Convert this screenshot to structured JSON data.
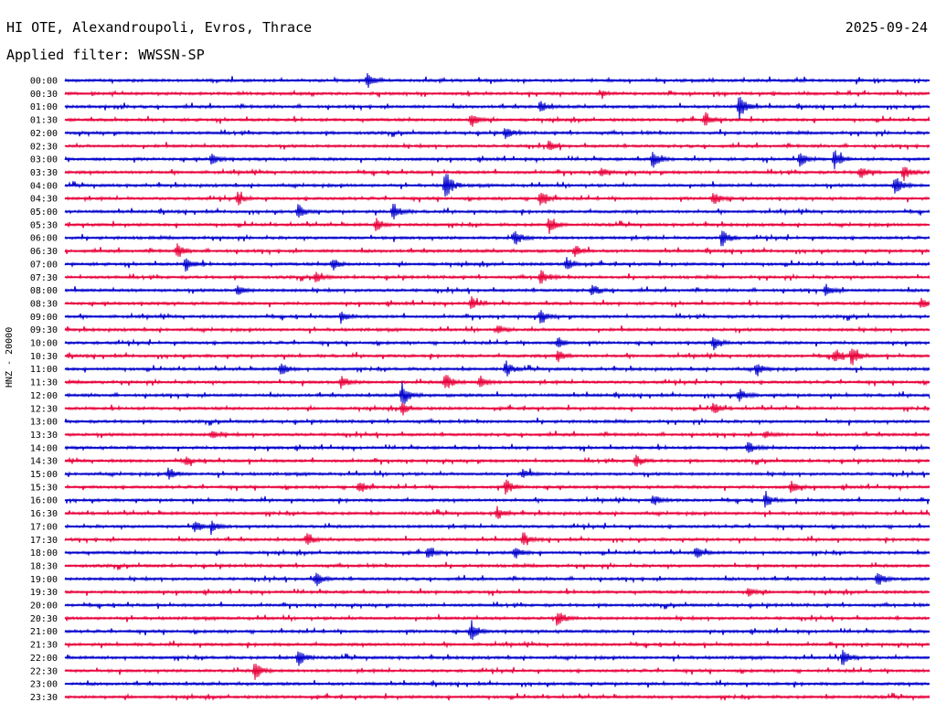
{
  "header": {
    "station": "HI OTE, Alexandroupoli, Evros, Thrace",
    "date": "2025-09-24",
    "filter": "Applied filter: WWSSN-SP"
  },
  "chart_data": {
    "type": "line",
    "title": "HI OTE, Alexandroupoli, Evros, Thrace",
    "ylabel": "HNZ - 20000",
    "row_labels": [
      "00:00",
      "00:30",
      "01:00",
      "01:30",
      "02:00",
      "02:30",
      "03:00",
      "03:30",
      "04:00",
      "04:30",
      "05:00",
      "05:30",
      "06:00",
      "06:30",
      "07:00",
      "07:30",
      "08:00",
      "08:30",
      "09:00",
      "09:30",
      "10:00",
      "10:30",
      "11:00",
      "11:30",
      "12:00",
      "12:30",
      "13:00",
      "13:30",
      "14:00",
      "14:30",
      "15:00",
      "15:30",
      "16:00",
      "16:30",
      "17:00",
      "17:30",
      "18:00",
      "18:30",
      "19:00",
      "19:30",
      "20:00",
      "20:30",
      "21:00",
      "21:30",
      "22:00",
      "22:30",
      "23:00",
      "23:30"
    ],
    "colors": [
      "#0000cc",
      "#e8003a"
    ],
    "events": [
      {
        "row": 0,
        "t": 0.35,
        "a": 1.0
      },
      {
        "row": 1,
        "t": 0.62,
        "a": 0.3
      },
      {
        "row": 2,
        "t": 0.55,
        "a": 0.8
      },
      {
        "row": 2,
        "t": 0.78,
        "a": 1.6
      },
      {
        "row": 3,
        "t": 0.47,
        "a": 1.0
      },
      {
        "row": 3,
        "t": 0.74,
        "a": 0.9
      },
      {
        "row": 4,
        "t": 0.51,
        "a": 0.8
      },
      {
        "row": 5,
        "t": 0.56,
        "a": 0.6
      },
      {
        "row": 6,
        "t": 0.17,
        "a": 0.8
      },
      {
        "row": 6,
        "t": 0.68,
        "a": 1.2
      },
      {
        "row": 6,
        "t": 0.85,
        "a": 1.0
      },
      {
        "row": 6,
        "t": 0.89,
        "a": 1.2
      },
      {
        "row": 7,
        "t": 0.62,
        "a": 0.6
      },
      {
        "row": 7,
        "t": 0.92,
        "a": 0.9
      },
      {
        "row": 7,
        "t": 0.97,
        "a": 1.0
      },
      {
        "row": 8,
        "t": 0.44,
        "a": 2.0
      },
      {
        "row": 8,
        "t": 0.96,
        "a": 1.4
      },
      {
        "row": 9,
        "t": 0.2,
        "a": 0.8
      },
      {
        "row": 9,
        "t": 0.55,
        "a": 1.3
      },
      {
        "row": 9,
        "t": 0.75,
        "a": 0.9
      },
      {
        "row": 10,
        "t": 0.38,
        "a": 1.1
      },
      {
        "row": 10,
        "t": 0.27,
        "a": 0.9
      },
      {
        "row": 11,
        "t": 0.36,
        "a": 0.8
      },
      {
        "row": 11,
        "t": 0.56,
        "a": 1.1
      },
      {
        "row": 12,
        "t": 0.52,
        "a": 1.0
      },
      {
        "row": 12,
        "t": 0.76,
        "a": 1.3
      },
      {
        "row": 13,
        "t": 0.13,
        "a": 0.9
      },
      {
        "row": 13,
        "t": 0.59,
        "a": 0.8
      },
      {
        "row": 14,
        "t": 0.14,
        "a": 0.9
      },
      {
        "row": 14,
        "t": 0.31,
        "a": 0.8
      },
      {
        "row": 14,
        "t": 0.58,
        "a": 1.0
      },
      {
        "row": 15,
        "t": 0.29,
        "a": 0.7
      },
      {
        "row": 15,
        "t": 0.55,
        "a": 1.0
      },
      {
        "row": 16,
        "t": 0.2,
        "a": 0.6
      },
      {
        "row": 16,
        "t": 0.61,
        "a": 0.8
      },
      {
        "row": 16,
        "t": 0.88,
        "a": 0.8
      },
      {
        "row": 17,
        "t": 0.47,
        "a": 0.9
      },
      {
        "row": 17,
        "t": 0.99,
        "a": 0.8
      },
      {
        "row": 18,
        "t": 0.32,
        "a": 0.6
      },
      {
        "row": 18,
        "t": 0.55,
        "a": 0.9
      },
      {
        "row": 19,
        "t": 0.5,
        "a": 0.6
      },
      {
        "row": 20,
        "t": 0.57,
        "a": 0.7
      },
      {
        "row": 20,
        "t": 0.75,
        "a": 0.8
      },
      {
        "row": 21,
        "t": 0.57,
        "a": 0.8
      },
      {
        "row": 21,
        "t": 0.89,
        "a": 1.1
      },
      {
        "row": 21,
        "t": 0.91,
        "a": 1.2
      },
      {
        "row": 22,
        "t": 0.25,
        "a": 0.8
      },
      {
        "row": 22,
        "t": 0.51,
        "a": 1.0
      },
      {
        "row": 22,
        "t": 0.8,
        "a": 0.9
      },
      {
        "row": 23,
        "t": 0.32,
        "a": 0.8
      },
      {
        "row": 23,
        "t": 0.44,
        "a": 1.3
      },
      {
        "row": 23,
        "t": 0.48,
        "a": 0.9
      },
      {
        "row": 24,
        "t": 0.39,
        "a": 1.5
      },
      {
        "row": 24,
        "t": 0.78,
        "a": 0.8
      },
      {
        "row": 25,
        "t": 0.39,
        "a": 0.8
      },
      {
        "row": 25,
        "t": 0.75,
        "a": 0.8
      },
      {
        "row": 27,
        "t": 0.17,
        "a": 0.5
      },
      {
        "row": 27,
        "t": 0.81,
        "a": 0.5
      },
      {
        "row": 28,
        "t": 0.79,
        "a": 0.8
      },
      {
        "row": 29,
        "t": 0.14,
        "a": 0.5
      },
      {
        "row": 29,
        "t": 0.66,
        "a": 0.8
      },
      {
        "row": 30,
        "t": 0.12,
        "a": 0.9
      },
      {
        "row": 30,
        "t": 0.53,
        "a": 0.6
      },
      {
        "row": 31,
        "t": 0.34,
        "a": 0.9
      },
      {
        "row": 31,
        "t": 0.51,
        "a": 1.0
      },
      {
        "row": 31,
        "t": 0.84,
        "a": 0.8
      },
      {
        "row": 32,
        "t": 0.68,
        "a": 0.7
      },
      {
        "row": 32,
        "t": 0.81,
        "a": 0.9
      },
      {
        "row": 33,
        "t": 0.5,
        "a": 0.8
      },
      {
        "row": 34,
        "t": 0.15,
        "a": 0.8
      },
      {
        "row": 34,
        "t": 0.17,
        "a": 0.7
      },
      {
        "row": 35,
        "t": 0.28,
        "a": 0.8
      },
      {
        "row": 35,
        "t": 0.53,
        "a": 0.7
      },
      {
        "row": 36,
        "t": 0.42,
        "a": 0.8
      },
      {
        "row": 36,
        "t": 0.52,
        "a": 0.8
      },
      {
        "row": 36,
        "t": 0.73,
        "a": 0.8
      },
      {
        "row": 38,
        "t": 0.29,
        "a": 1.0
      },
      {
        "row": 38,
        "t": 0.94,
        "a": 1.0
      },
      {
        "row": 39,
        "t": 0.79,
        "a": 0.6
      },
      {
        "row": 41,
        "t": 0.57,
        "a": 1.0
      },
      {
        "row": 42,
        "t": 0.47,
        "a": 1.3
      },
      {
        "row": 44,
        "t": 0.27,
        "a": 1.2
      },
      {
        "row": 44,
        "t": 0.9,
        "a": 1.3
      },
      {
        "row": 45,
        "t": 0.22,
        "a": 1.2
      }
    ]
  }
}
